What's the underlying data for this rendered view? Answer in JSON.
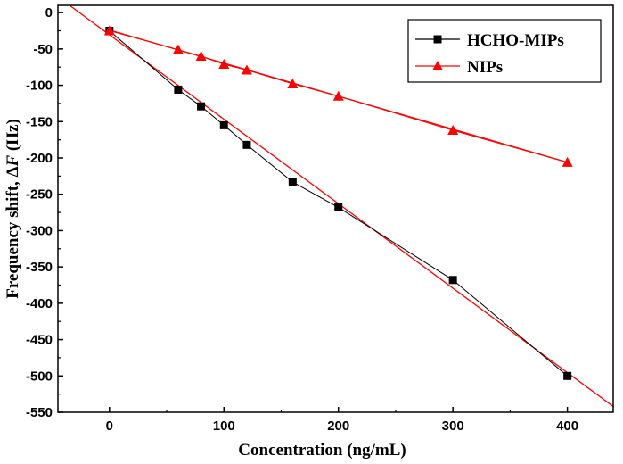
{
  "chart_data": {
    "type": "scatter",
    "xlabel": "Concentration (ng/mL)",
    "ylabel_prefix": "Frequency shift, Δ",
    "ylabel_var": "F",
    "ylabel_suffix": " (Hz)",
    "xlim": [
      -45,
      440
    ],
    "ylim": [
      -550,
      10
    ],
    "x_ticks": [
      0,
      100,
      200,
      300,
      400
    ],
    "y_ticks": [
      0,
      -50,
      -100,
      -150,
      -200,
      -250,
      -300,
      -350,
      -400,
      -450,
      -500,
      -550
    ],
    "grid": false,
    "legend_position": "top-right",
    "series": [
      {
        "name": "HCHO-MIPs",
        "marker": "square",
        "color": "#000000",
        "x": [
          0,
          60,
          80,
          100,
          120,
          160,
          200,
          300,
          400
        ],
        "y": [
          -25,
          -106,
          -129,
          -155,
          -182,
          -233,
          -268,
          -368,
          -500
        ]
      },
      {
        "name": "NIPs",
        "marker": "triangle",
        "color": "#ff0000",
        "x": [
          0,
          60,
          80,
          100,
          120,
          160,
          200,
          300,
          400
        ],
        "y": [
          -25,
          -51,
          -60,
          -71,
          -79,
          -98,
          -115,
          -162,
          -206
        ]
      }
    ],
    "fit_lines": [
      {
        "series": "HCHO-MIPs",
        "color": "#ff0000",
        "x": [
          -40,
          440
        ],
        "y": [
          16.0,
          -542.0
        ]
      },
      {
        "series": "NIPs",
        "color": "#ff0000",
        "x": [
          0,
          400
        ],
        "y": [
          -24.0,
          -206.0
        ]
      }
    ]
  }
}
